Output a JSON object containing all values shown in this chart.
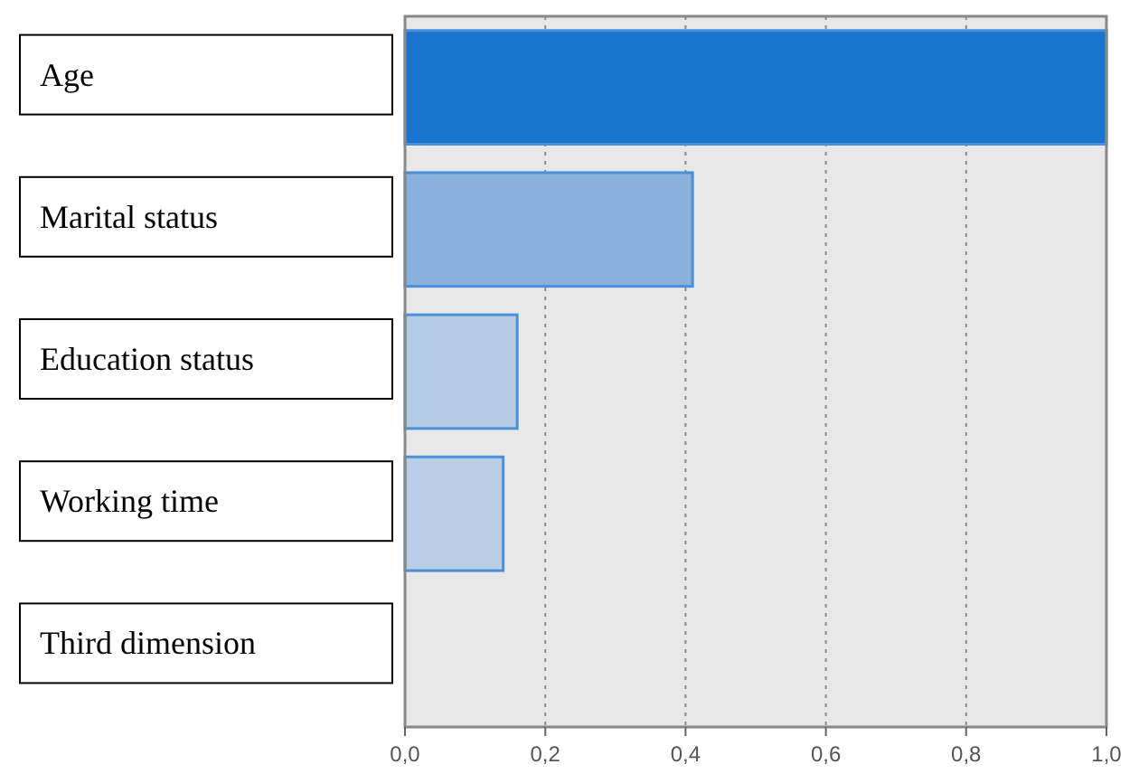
{
  "chart_data": {
    "type": "bar",
    "orientation": "horizontal",
    "categories": [
      "Age",
      "Marital status",
      "Education status",
      "Working time",
      "Third dimension"
    ],
    "values": [
      1.0,
      0.41,
      0.16,
      0.14,
      0
    ],
    "colors": [
      "#1874cd",
      "#8ab0dc",
      "#b6cbe4",
      "#b9cde4",
      "#b9cde4"
    ],
    "xlim": [
      0,
      1
    ],
    "xticks": [
      {
        "value": 0,
        "label": "0,0"
      },
      {
        "value": 0.2,
        "label": "0,2"
      },
      {
        "value": 0.4,
        "label": "0,4"
      },
      {
        "value": 0.6,
        "label": "0,6"
      },
      {
        "value": 0.8,
        "label": "0,8"
      },
      {
        "value": 1,
        "label": "1,0"
      }
    ],
    "grid": "x"
  }
}
